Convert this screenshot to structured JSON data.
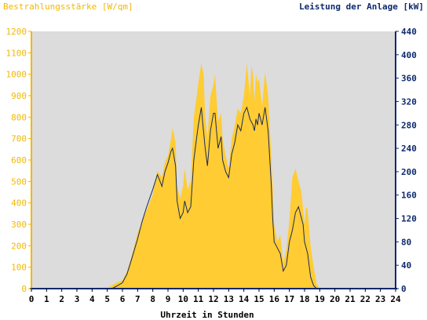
{
  "chart_data": {
    "type": "area",
    "left_axis_title": "Bestrahlungsstärke [W/qm]",
    "right_axis_title": "Leistung der Anlage [kW]",
    "xlabel": "Uhrzeit in Stunden",
    "xlim": [
      0,
      24
    ],
    "ylim_left": [
      0,
      1200
    ],
    "ylim_right": [
      0,
      440
    ],
    "x_ticks": [
      "0",
      "1",
      "2",
      "3",
      "4",
      "5",
      "6",
      "7",
      "8",
      "9",
      "10",
      "11",
      "12",
      "13",
      "14",
      "15",
      "16",
      "17",
      "18",
      "19",
      "20",
      "21",
      "22",
      "23",
      "24"
    ],
    "left_ticks": [
      "0",
      "100",
      "200",
      "300",
      "400",
      "500",
      "600",
      "700",
      "800",
      "900",
      "1000",
      "1100",
      "1200"
    ],
    "right_ticks": [
      "0",
      "40",
      "80",
      "120",
      "160",
      "200",
      "240",
      "280",
      "320",
      "360",
      "400",
      "440"
    ],
    "colors": {
      "irradiance": "#ffcc33",
      "power": "#1a2a5a",
      "plot_background": "#dcdcdc",
      "left_axis_text": "#f2b800",
      "right_axis_text": "#0e2a6e",
      "axis_text": "#000000"
    },
    "series": [
      {
        "name": "Bestrahlungsstärke",
        "axis": "left",
        "style": "area",
        "x": [
          0,
          5.1,
          5.4,
          6.0,
          6.3,
          6.6,
          7.0,
          7.5,
          8.0,
          8.3,
          8.6,
          8.8,
          9.0,
          9.2,
          9.3,
          9.5,
          9.6,
          9.8,
          10.0,
          10.1,
          10.3,
          10.5,
          10.7,
          10.9,
          11.0,
          11.2,
          11.35,
          11.45,
          11.6,
          11.8,
          12.0,
          12.1,
          12.3,
          12.5,
          12.6,
          12.8,
          13.0,
          13.2,
          13.4,
          13.6,
          13.8,
          14.0,
          14.2,
          14.4,
          14.5,
          14.6,
          14.7,
          14.8,
          14.9,
          15.0,
          15.2,
          15.4,
          15.6,
          15.8,
          15.9,
          16.0,
          16.2,
          16.4,
          16.6,
          16.8,
          17.0,
          17.2,
          17.4,
          17.6,
          17.8,
          17.9,
          18.0,
          18.1,
          18.2,
          18.4,
          18.6,
          18.8,
          19.0,
          19.1,
          19.2,
          19.4,
          19.6,
          19.8,
          20.0,
          24
        ],
        "y": [
          0,
          5,
          20,
          40,
          80,
          150,
          260,
          350,
          440,
          550,
          520,
          590,
          620,
          700,
          750,
          680,
          480,
          420,
          480,
          560,
          460,
          500,
          800,
          900,
          960,
          1050,
          1000,
          800,
          700,
          900,
          950,
          1000,
          780,
          820,
          700,
          620,
          560,
          700,
          760,
          840,
          820,
          900,
          1050,
          900,
          1040,
          1000,
          870,
          1000,
          960,
          980,
          850,
          1010,
          900,
          630,
          480,
          300,
          220,
          250,
          120,
          180,
          320,
          520,
          560,
          500,
          450,
          370,
          300,
          380,
          370,
          200,
          100,
          20,
          0,
          0,
          0,
          0,
          0,
          0,
          0,
          0
        ]
      },
      {
        "name": "Leistung der Anlage",
        "axis": "right",
        "style": "line",
        "x": [
          0,
          5.3,
          5.6,
          6.0,
          6.3,
          6.6,
          7.0,
          7.3,
          7.6,
          8.0,
          8.3,
          8.6,
          8.8,
          9.0,
          9.2,
          9.3,
          9.5,
          9.6,
          9.8,
          10.0,
          10.1,
          10.3,
          10.5,
          10.7,
          10.9,
          11.0,
          11.2,
          11.3,
          11.45,
          11.6,
          11.8,
          12.0,
          12.1,
          12.3,
          12.5,
          12.6,
          12.8,
          13.0,
          13.2,
          13.4,
          13.6,
          13.8,
          14.0,
          14.2,
          14.4,
          14.5,
          14.6,
          14.7,
          14.8,
          14.9,
          15.0,
          15.2,
          15.4,
          15.6,
          15.8,
          15.9,
          16.0,
          16.2,
          16.4,
          16.6,
          16.8,
          17.0,
          17.2,
          17.4,
          17.6,
          17.8,
          17.9,
          18.0,
          18.1,
          18.2,
          18.4,
          18.6,
          18.8,
          19.0,
          19.1,
          19.2,
          19.4,
          19.6,
          19.8,
          20.0,
          24
        ],
        "y": [
          0,
          0,
          4,
          10,
          25,
          50,
          85,
          115,
          140,
          170,
          195,
          175,
          200,
          215,
          235,
          240,
          210,
          150,
          120,
          130,
          150,
          130,
          140,
          220,
          260,
          280,
          310,
          280,
          240,
          210,
          270,
          300,
          300,
          240,
          260,
          220,
          200,
          190,
          230,
          250,
          280,
          270,
          300,
          310,
          290,
          285,
          280,
          270,
          290,
          280,
          300,
          280,
          310,
          270,
          180,
          120,
          80,
          70,
          60,
          30,
          40,
          80,
          100,
          130,
          140,
          120,
          110,
          80,
          70,
          60,
          20,
          5,
          0,
          0,
          0,
          0,
          0,
          0,
          0,
          0,
          0
        ]
      }
    ]
  }
}
